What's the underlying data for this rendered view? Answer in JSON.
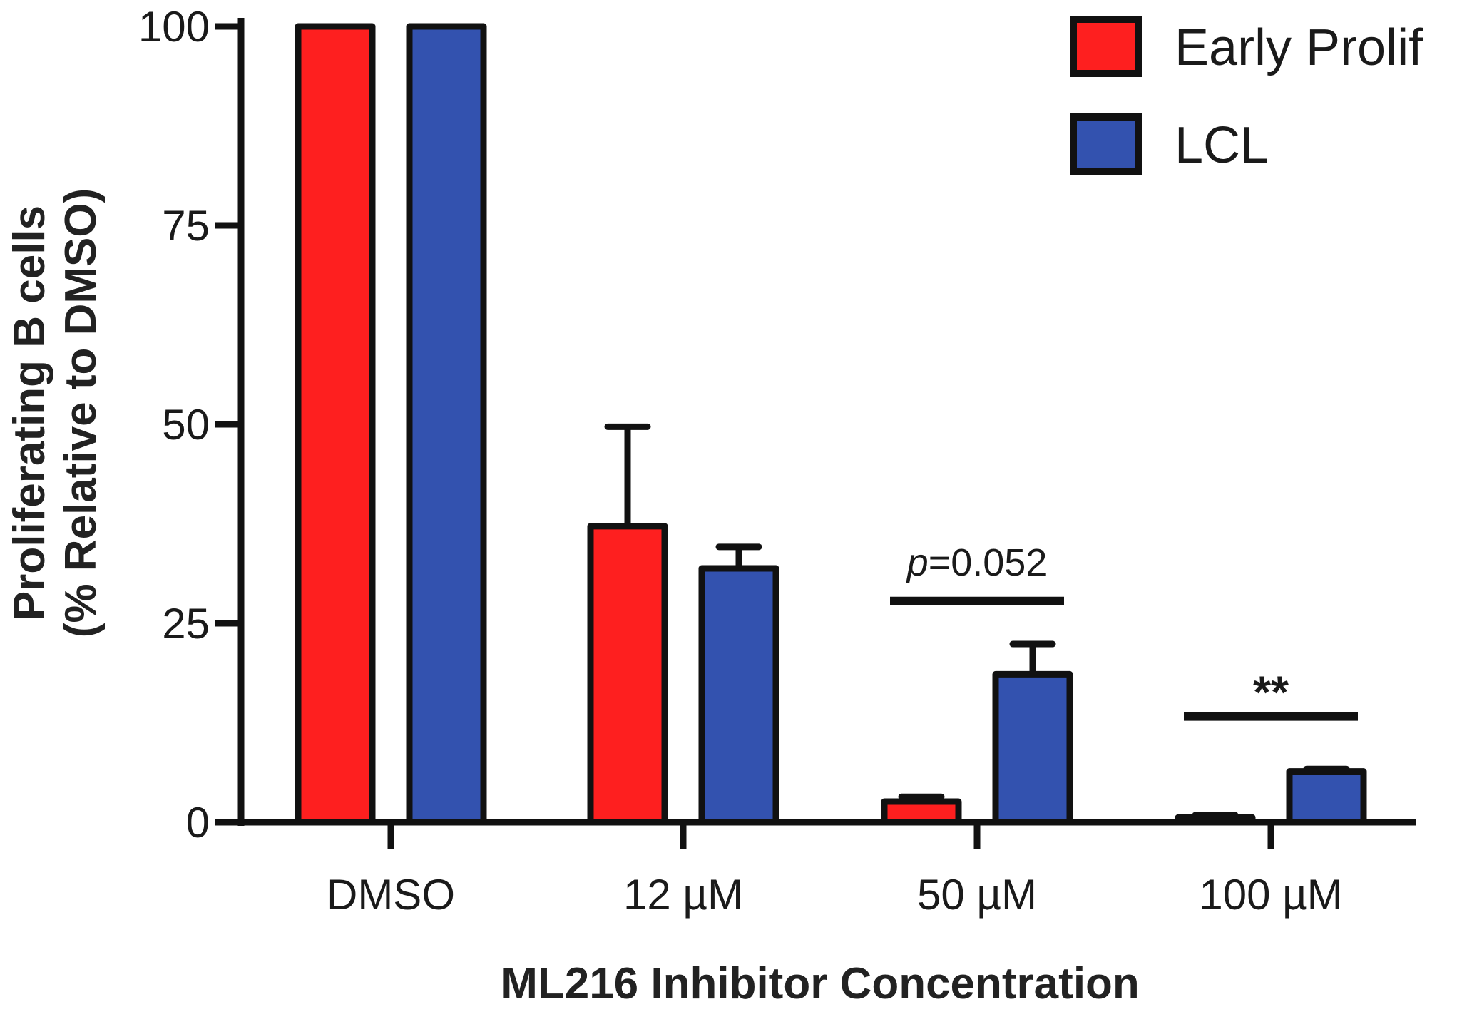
{
  "chart_data": {
    "type": "bar",
    "title": "",
    "xlabel": "ML216 Inhibitor Concentration",
    "ylabel_line1": "Proliferating B cells",
    "ylabel_line2": "(% Relative to DMSO)",
    "ylim": [
      0,
      100
    ],
    "yticks": [
      "0",
      "25",
      "50",
      "75",
      "100"
    ],
    "ytick_values": [
      0,
      25,
      50,
      75,
      100
    ],
    "categories": [
      "DMSO",
      "12 µM",
      "50 µM",
      "100 µM"
    ],
    "series": [
      {
        "name": "Early Prolif",
        "color": "#fe1f1f",
        "values": [
          100,
          37.2,
          2.6,
          0.6
        ],
        "error_upper": [
          100,
          49.7,
          3.2,
          0.9
        ]
      },
      {
        "name": "LCL",
        "color": "#3352af",
        "values": [
          100,
          31.9,
          18.6,
          6.4
        ],
        "error_upper": [
          100,
          34.6,
          22.4,
          6.7
        ]
      }
    ],
    "legend_position": "top-right",
    "annotations": [
      {
        "category_index": 2,
        "label_prefix": "p",
        "label_text": "=0.052",
        "bracket_value": 27.8,
        "text_value": 31
      },
      {
        "category_index": 3,
        "label_text": "**",
        "bracket_value": 13.3,
        "text_value": 16
      }
    ]
  }
}
